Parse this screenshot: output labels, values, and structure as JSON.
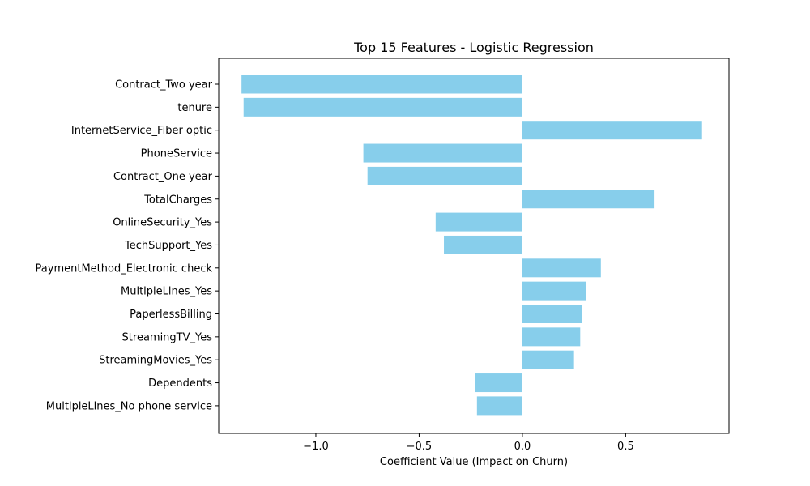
{
  "chart_data": {
    "type": "bar",
    "orientation": "horizontal",
    "title": "Top 15 Features - Logistic Regression",
    "xlabel": "Coefficient Value (Impact on Churn)",
    "ylabel": "",
    "xlim": [
      -1.4705,
      1.0005
    ],
    "x_ticks": [
      -1.0,
      -0.5,
      0.0,
      0.5
    ],
    "x_tick_labels": [
      "−1.0",
      "−0.5",
      "0.0",
      "0.5"
    ],
    "grid": false,
    "bar_color": "#87ceeb",
    "categories": [
      "Contract_Two year",
      "tenure",
      "InternetService_Fiber optic",
      "PhoneService",
      "Contract_One year",
      "TotalCharges",
      "OnlineSecurity_Yes",
      "TechSupport_Yes",
      "PaymentMethod_Electronic check",
      "MultipleLines_Yes",
      "PaperlessBilling",
      "StreamingTV_Yes",
      "StreamingMovies_Yes",
      "Dependents",
      "MultipleLines_No phone service"
    ],
    "values": [
      -1.36,
      -1.35,
      0.87,
      -0.77,
      -0.75,
      0.64,
      -0.42,
      -0.38,
      0.38,
      0.31,
      0.29,
      0.28,
      0.25,
      -0.23,
      -0.22
    ]
  }
}
